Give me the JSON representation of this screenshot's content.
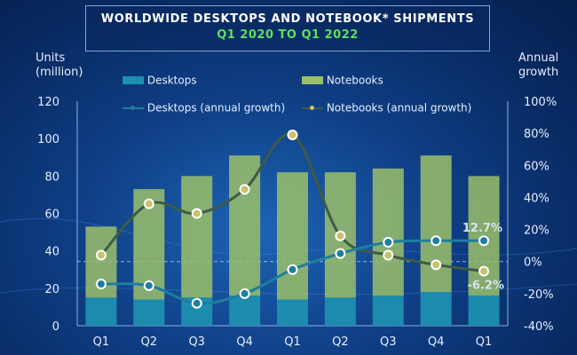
{
  "chart_data": {
    "type": "bar",
    "title": "Worldwide Desktops and Notebook* Shipments",
    "subtitle": "Q1 2020 to Q1 2022",
    "categories": [
      "Q1",
      "Q2",
      "Q3",
      "Q4",
      "Q1",
      "Q2",
      "Q3",
      "Q4",
      "Q1"
    ],
    "stacked": true,
    "series": [
      {
        "name": "Desktops",
        "axis": "left",
        "kind": "bar",
        "color": "#1d8fb0",
        "values": [
          15,
          14,
          15,
          16,
          14,
          15,
          16,
          18,
          16
        ]
      },
      {
        "name": "Notebooks",
        "axis": "left",
        "kind": "bar",
        "color": "#9bc06a",
        "values": [
          38,
          59,
          65,
          75,
          68,
          67,
          68,
          73,
          64
        ]
      },
      {
        "name": "Desktops (annual growth)",
        "axis": "right",
        "kind": "line",
        "color": "#1e7ea0",
        "values": [
          -14,
          -15,
          -26,
          -20,
          -5,
          5,
          12,
          13,
          13
        ]
      },
      {
        "name": "Notebooks (annual growth)",
        "axis": "right",
        "kind": "line",
        "color": "#3f5a45",
        "values": [
          4,
          36,
          30,
          45,
          79,
          16,
          4,
          -2,
          -6
        ]
      }
    ],
    "left_axis": {
      "label": "Units (million)",
      "min": 0,
      "max": 120,
      "ticks": [
        "0",
        "20",
        "40",
        "60",
        "80",
        "100",
        "120"
      ]
    },
    "right_axis": {
      "label": "Annual growth",
      "min": -40,
      "max": 100,
      "ticks": [
        "-40%",
        "-20%",
        "0%",
        "20%",
        "40%",
        "60%",
        "80%",
        "100%"
      ]
    },
    "annotations": [
      "12.7%",
      "-6.2%"
    ]
  },
  "labels": {
    "title_line1": "WORLDWIDE DESKTOPS AND NOTEBOOK* SHIPMENTS",
    "title_line2": "Q1 2020 TO Q1 2022",
    "left_axis_title_1": "Units",
    "left_axis_title_2": "(million)",
    "right_axis_title_1": "Annual",
    "right_axis_title_2": "growth",
    "legend_desktops": "Desktops",
    "legend_notebooks": "Notebooks",
    "legend_desktops_growth": "Desktops (annual growth)",
    "legend_notebooks_growth": "Notebooks (annual growth)"
  }
}
